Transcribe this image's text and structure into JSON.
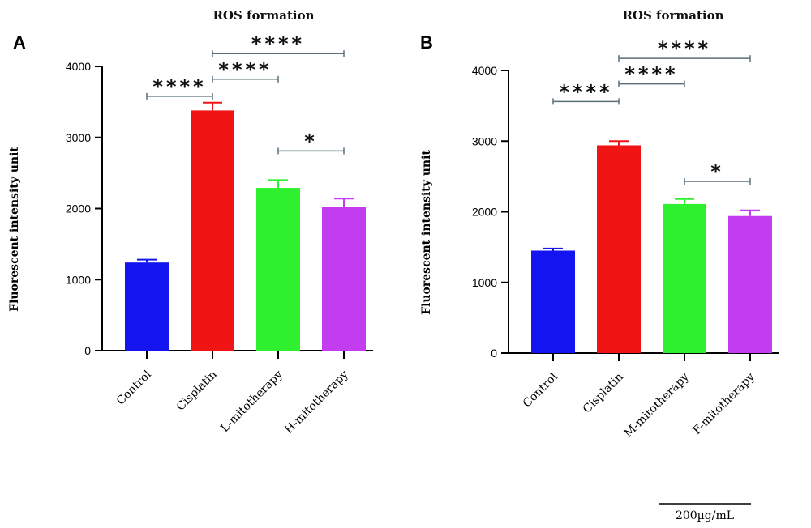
{
  "chart_data": [
    {
      "panel": "A",
      "type": "bar",
      "title": "ROS formation",
      "ylabel": "Fluorescent intensity unit",
      "xlabel": "",
      "ylim": [
        0,
        4000
      ],
      "yticks": [
        0,
        1000,
        2000,
        3000,
        4000
      ],
      "categories": [
        "Control",
        "Cisplatin",
        "L-mitotherapy",
        "H-mitotherapy"
      ],
      "values": [
        1240,
        3380,
        2290,
        2020
      ],
      "errors": [
        40,
        110,
        110,
        120
      ],
      "colors": [
        "#1414f0",
        "#f01414",
        "#2ef02e",
        "#c23df0"
      ],
      "significance": [
        {
          "from": 0,
          "to": 1,
          "label": "****",
          "level": 3580
        },
        {
          "from": 1,
          "to": 2,
          "label": "****",
          "level": 3820
        },
        {
          "from": 1,
          "to": 3,
          "label": "****",
          "level": 4180
        },
        {
          "from": 2,
          "to": 3,
          "label": "*",
          "level": 2810
        }
      ]
    },
    {
      "panel": "B",
      "type": "bar",
      "title": "ROS formation",
      "ylabel": "Fluorescent intensity unit",
      "xlabel": "",
      "ylim": [
        0,
        4000
      ],
      "yticks": [
        0,
        1000,
        2000,
        3000,
        4000
      ],
      "categories": [
        "Control",
        "Cisplatin",
        "M-mitotherapy",
        "F-mitotherapy"
      ],
      "values": [
        1450,
        2940,
        2110,
        1940
      ],
      "errors": [
        30,
        60,
        70,
        80
      ],
      "colors": [
        "#1414f0",
        "#f01414",
        "#2ef02e",
        "#c23df0"
      ],
      "significance": [
        {
          "from": 0,
          "to": 1,
          "label": "****",
          "level": 3560
        },
        {
          "from": 1,
          "to": 2,
          "label": "****",
          "level": 3810
        },
        {
          "from": 1,
          "to": 3,
          "label": "****",
          "level": 4170
        },
        {
          "from": 2,
          "to": 3,
          "label": "*",
          "level": 2430
        }
      ]
    }
  ],
  "scale_bar": {
    "label": "200µg/mL"
  },
  "style": {
    "axis_color": "#000000",
    "bracket_color": "#5a6f7a"
  }
}
